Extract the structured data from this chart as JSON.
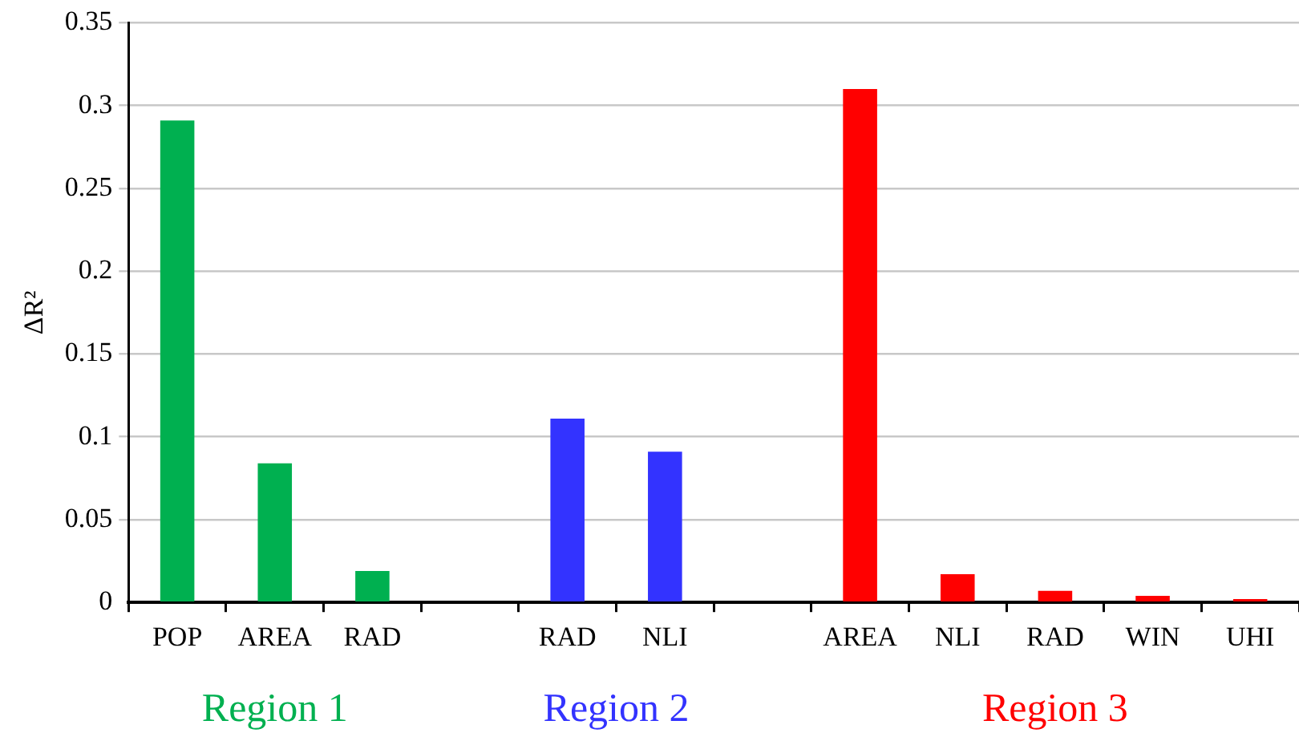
{
  "chart_data": {
    "type": "bar",
    "ylabel": "ΔR²",
    "categories": [
      "POP",
      "AREA",
      "RAD",
      null,
      "RAD",
      "NLI",
      null,
      "AREA",
      "NLI",
      "RAD",
      "WIN",
      "UHI"
    ],
    "series": [
      {
        "name": "Region 1",
        "color": "#00b050",
        "values": [
          0.291,
          0.084,
          0.019,
          null,
          null,
          null,
          null,
          null,
          null,
          null,
          null,
          null
        ]
      },
      {
        "name": "Region 2",
        "color": "#3333ff",
        "values": [
          null,
          null,
          null,
          null,
          0.111,
          0.091,
          null,
          null,
          null,
          null,
          null,
          null
        ]
      },
      {
        "name": "Region 3",
        "color": "#ff0000",
        "values": [
          null,
          null,
          null,
          null,
          null,
          null,
          null,
          0.31,
          0.017,
          0.007,
          0.004,
          0.002
        ]
      }
    ],
    "ylim": [
      0,
      0.35
    ],
    "yticks": [
      0,
      0.05,
      0.1,
      0.15,
      0.2,
      0.25,
      0.3,
      0.35
    ],
    "grid": "y",
    "legend": false
  }
}
